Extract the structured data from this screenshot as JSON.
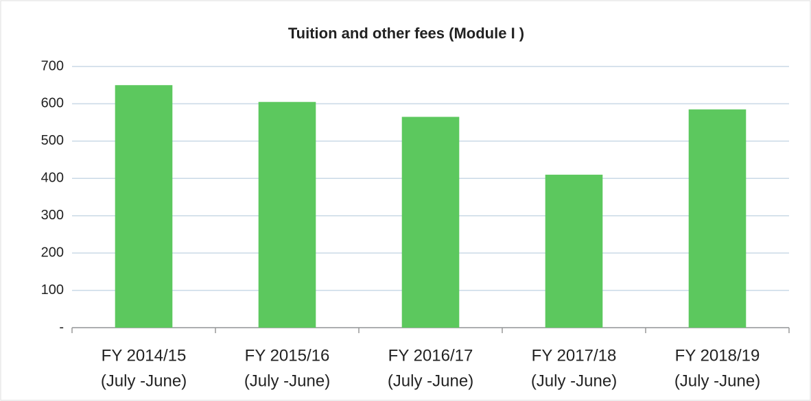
{
  "chart_data": {
    "type": "bar",
    "title": "Tuition and other fees (Module I )",
    "categories": [
      [
        "FY 2014/15",
        "(July -June)"
      ],
      [
        "FY 2015/16",
        "(July -June)"
      ],
      [
        "FY 2016/17",
        "(July -June)"
      ],
      [
        "FY 2017/18",
        "(July -June)"
      ],
      [
        "FY 2018/19",
        "(July -June)"
      ]
    ],
    "values": [
      650,
      605,
      565,
      410,
      585
    ],
    "color": "#5cc85e",
    "ylim": [
      0,
      700
    ],
    "yticks": [
      {
        "value": 0,
        "label": "-"
      },
      100,
      200,
      300,
      400,
      500,
      600,
      700
    ],
    "grid": true
  }
}
